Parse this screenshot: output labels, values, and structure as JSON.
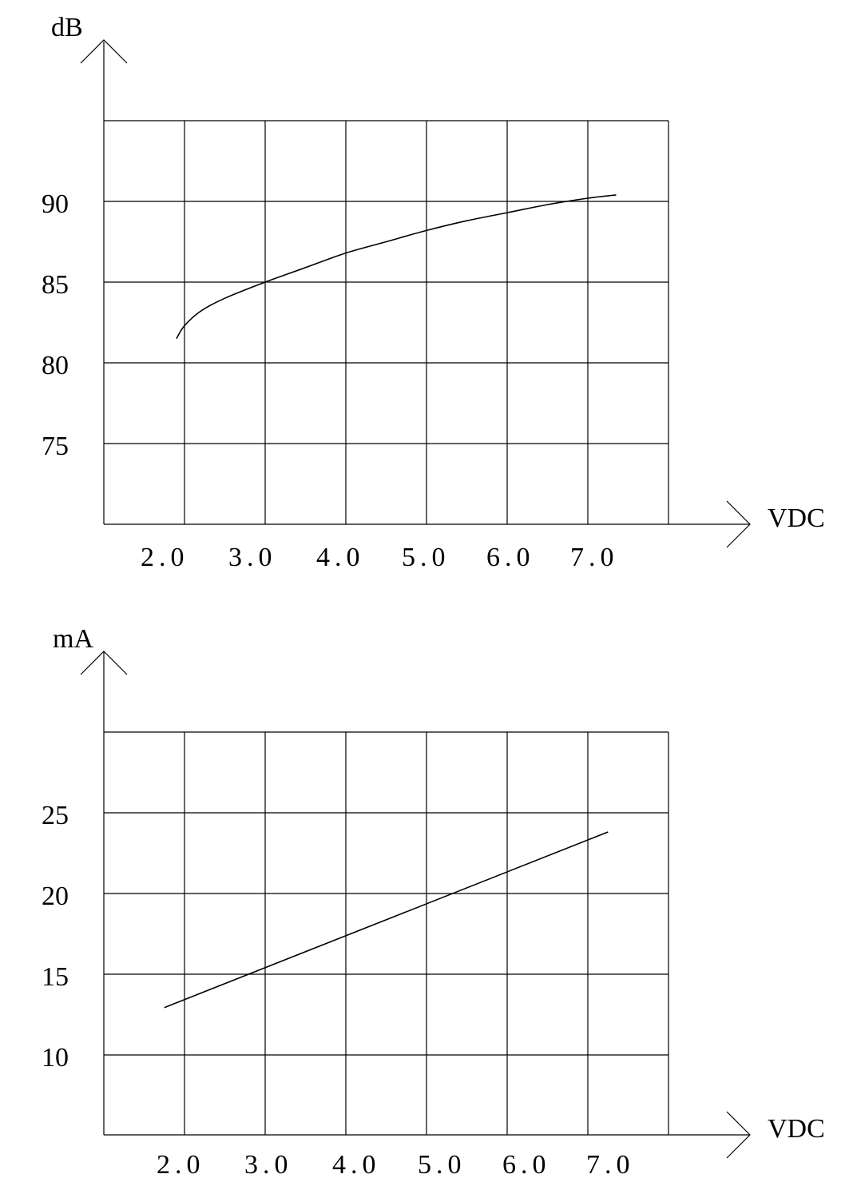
{
  "chart_data": [
    {
      "type": "line",
      "ylabel": "dB",
      "xlabel": "VDC",
      "x_ticks": [
        "2.0",
        "3.0",
        "4.0",
        "5.0",
        "6.0",
        "7.0"
      ],
      "y_ticks": [
        "75",
        "80",
        "85",
        "90"
      ],
      "xlim": [
        1.0,
        8.0
      ],
      "ylim": [
        70,
        95
      ],
      "grid": true,
      "series": [
        {
          "x": [
            1.9,
            2.0,
            2.2,
            2.5,
            3.0,
            3.5,
            4.0,
            4.5,
            5.0,
            5.5,
            6.0,
            6.5,
            7.0,
            7.35
          ],
          "y": [
            81.5,
            82.3,
            83.2,
            84.0,
            85.0,
            85.9,
            86.8,
            87.5,
            88.2,
            88.8,
            89.3,
            89.8,
            90.2,
            90.4
          ]
        }
      ]
    },
    {
      "type": "line",
      "ylabel": "mA",
      "xlabel": "VDC",
      "x_ticks": [
        "2.0",
        "3.0",
        "4.0",
        "5.0",
        "6.0",
        "7.0"
      ],
      "y_ticks": [
        "10",
        "15",
        "20",
        "25"
      ],
      "xlim": [
        1.0,
        8.0
      ],
      "ylim": [
        5,
        30
      ],
      "grid": true,
      "series": [
        {
          "x": [
            1.75,
            7.25
          ],
          "y": [
            12.9,
            23.8
          ]
        }
      ]
    }
  ]
}
